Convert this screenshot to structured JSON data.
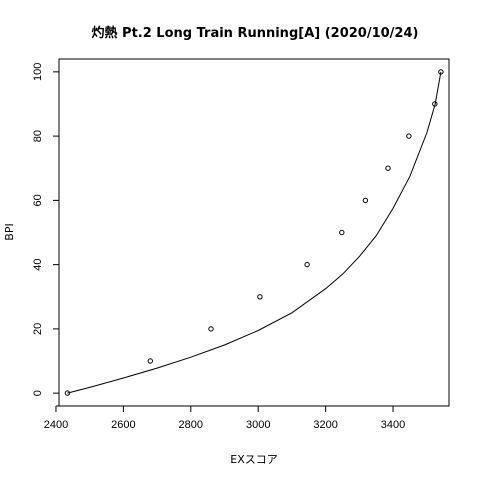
{
  "chart_data": {
    "type": "scatter",
    "title": "灼熱 Pt.2 Long Train Running[A] (2020/10/24)",
    "xlabel": "EXスコア",
    "ylabel": "BPI",
    "xlim": [
      2409,
      3566
    ],
    "ylim": [
      -4,
      104
    ],
    "xticks": [
      2400,
      2600,
      2800,
      3000,
      3200,
      3400
    ],
    "yticks": [
      0,
      20,
      40,
      60,
      80,
      100
    ],
    "grid": false,
    "points": {
      "x": [
        2434,
        2680,
        2860,
        3005,
        3145,
        3248,
        3318,
        3385,
        3447,
        3524,
        3542
      ],
      "y": [
        0,
        10,
        20,
        30,
        40,
        50,
        60,
        70,
        80,
        90,
        100
      ]
    },
    "curve": {
      "x": [
        2434,
        2500,
        2600,
        2700,
        2800,
        2900,
        3000,
        3100,
        3200,
        3250,
        3300,
        3350,
        3400,
        3450,
        3500,
        3525,
        3542
      ],
      "y": [
        0,
        1.8,
        4.7,
        7.8,
        11.2,
        15.0,
        19.5,
        25.0,
        32.5,
        37.0,
        42.5,
        49.0,
        57.5,
        67.5,
        81.0,
        90.0,
        100
      ]
    }
  }
}
